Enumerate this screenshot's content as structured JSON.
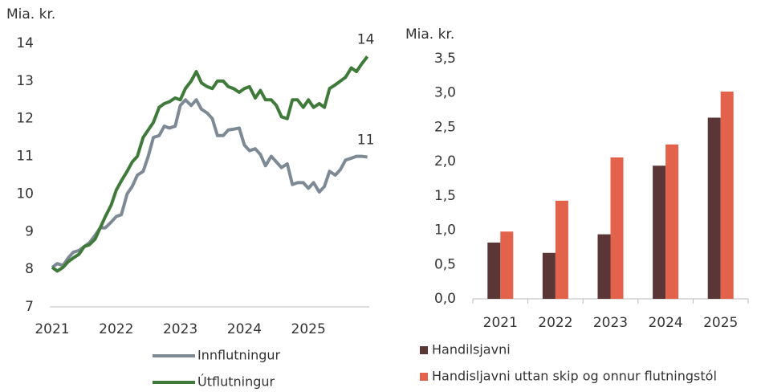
{
  "chart_data": [
    {
      "type": "line",
      "y_label": "Mia. kr.",
      "x": [
        2021,
        2021.08,
        2021.17,
        2021.25,
        2021.33,
        2021.42,
        2021.5,
        2021.58,
        2021.67,
        2021.75,
        2021.83,
        2021.92,
        2022,
        2022.08,
        2022.17,
        2022.25,
        2022.33,
        2022.42,
        2022.5,
        2022.58,
        2022.67,
        2022.75,
        2022.83,
        2022.92,
        2023,
        2023.08,
        2023.17,
        2023.25,
        2023.33,
        2023.42,
        2023.5,
        2023.58,
        2023.67,
        2023.75,
        2023.83,
        2023.92,
        2024,
        2024.08,
        2024.17,
        2024.25,
        2024.33,
        2024.42,
        2024.5,
        2024.58,
        2024.67,
        2024.75,
        2024.83,
        2024.92,
        2025,
        2025.08,
        2025.17,
        2025.25,
        2025.33,
        2025.42,
        2025.5,
        2025.58,
        2025.67,
        2025.75,
        2025.83,
        2025.92
      ],
      "xlim": [
        2021,
        2025.95
      ],
      "xticks": [
        2021,
        2022,
        2023,
        2024,
        2025
      ],
      "ylim": [
        7,
        14
      ],
      "yticks": [
        7,
        8,
        9,
        10,
        11,
        12,
        13,
        14
      ],
      "series": [
        {
          "name": "Innflutningur",
          "color": "#7d8a96",
          "values": [
            8.05,
            8.15,
            8.1,
            8.3,
            8.45,
            8.5,
            8.6,
            8.7,
            8.9,
            9.1,
            9.1,
            9.25,
            9.4,
            9.45,
            10.0,
            10.2,
            10.5,
            10.6,
            11.0,
            11.5,
            11.55,
            11.8,
            11.75,
            11.8,
            12.35,
            12.5,
            12.35,
            12.5,
            12.25,
            12.15,
            12.0,
            11.55,
            11.55,
            11.7,
            11.72,
            11.75,
            11.3,
            11.15,
            11.2,
            11.05,
            10.75,
            11.0,
            10.85,
            10.7,
            10.8,
            10.25,
            10.3,
            10.3,
            10.15,
            10.3,
            10.05,
            10.2,
            10.6,
            10.5,
            10.65,
            10.9,
            10.95,
            11.0,
            11.0,
            10.98
          ]
        },
        {
          "name": "Útflutningur",
          "color": "#3f7a3a",
          "values": [
            8.05,
            7.95,
            8.05,
            8.2,
            8.3,
            8.4,
            8.6,
            8.65,
            8.8,
            9.1,
            9.4,
            9.7,
            10.1,
            10.35,
            10.6,
            10.85,
            11.0,
            11.5,
            11.7,
            11.9,
            12.3,
            12.4,
            12.45,
            12.55,
            12.5,
            12.8,
            13.0,
            13.25,
            12.95,
            12.85,
            12.8,
            13.0,
            13.0,
            12.85,
            12.8,
            12.7,
            12.8,
            12.85,
            12.55,
            12.75,
            12.5,
            12.5,
            12.35,
            12.05,
            12.0,
            12.5,
            12.5,
            12.3,
            12.5,
            12.3,
            12.4,
            12.3,
            12.8,
            12.9,
            13.0,
            13.1,
            13.35,
            13.25,
            13.45,
            13.65
          ]
        }
      ],
      "annotations": [
        {
          "text": "14",
          "x": 2025.92,
          "y": 13.65
        },
        {
          "text": "11",
          "x": 2025.92,
          "y": 10.98
        }
      ]
    },
    {
      "type": "bar",
      "y_label": "Mia. kr.",
      "categories": [
        "2021",
        "2022",
        "2023",
        "2024",
        "2025"
      ],
      "ylim": [
        0,
        3.5
      ],
      "yticks": [
        {
          "value": 0,
          "label": "0,0"
        },
        {
          "value": 0.5,
          "label": "0,5"
        },
        {
          "value": 1,
          "label": "1,0"
        },
        {
          "value": 1.5,
          "label": "1,5"
        },
        {
          "value": 2,
          "label": "2,0"
        },
        {
          "value": 2.5,
          "label": "2,5"
        },
        {
          "value": 3,
          "label": "3,0"
        },
        {
          "value": 3.5,
          "label": "3,5"
        }
      ],
      "series": [
        {
          "name": "Handilsjavni",
          "color": "#5b3636",
          "values": [
            0.82,
            0.67,
            0.94,
            1.94,
            2.64
          ]
        },
        {
          "name": "Handisljavni uttan skip og onnur flutningstól",
          "color": "#e2624b",
          "values": [
            0.98,
            1.43,
            2.06,
            2.25,
            3.02
          ]
        }
      ]
    }
  ]
}
